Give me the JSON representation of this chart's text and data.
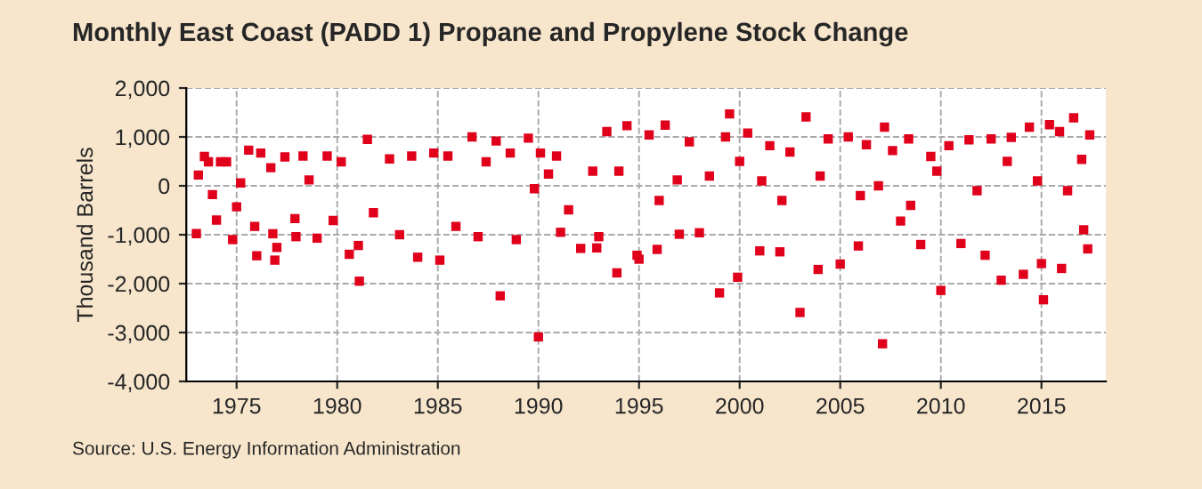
{
  "chart_data": {
    "type": "scatter",
    "title": "Monthly East Coast (PADD 1) Propane and Propylene Stock Change",
    "ylabel": "Thousand Barrels",
    "annotations": [
      "Source: U.S. Energy Information Administration"
    ],
    "xlim": [
      1972.5,
      2018.2
    ],
    "xticks": [
      1975,
      1980,
      1985,
      1990,
      1995,
      2000,
      2005,
      2010,
      2015
    ],
    "ylim": [
      -4000,
      2000
    ],
    "yticks": [
      {
        "value": -4000,
        "label": "-4,000"
      },
      {
        "value": -3000,
        "label": "-3,000"
      },
      {
        "value": -2000,
        "label": "-2,000"
      },
      {
        "value": -1000,
        "label": "-1,000"
      },
      {
        "value": 0,
        "label": "0"
      },
      {
        "value": 1000,
        "label": "1,000"
      },
      {
        "value": 2000,
        "label": "2,000"
      }
    ],
    "grid": true,
    "marker": "square",
    "series": [
      {
        "color": "#e0001b",
        "x": [
          1973.0,
          1973.1,
          1973.4,
          1973.6,
          1973.8,
          1974.0,
          1974.2,
          1974.5,
          1974.8,
          1975.0,
          1975.2,
          1975.6,
          1975.9,
          1976.0,
          1976.2,
          1976.7,
          1976.8,
          1976.9,
          1977.0,
          1977.4,
          1977.9,
          1977.95,
          1978.3,
          1978.6,
          1979.0,
          1979.5,
          1979.8,
          1980.2,
          1980.6,
          1981.05,
          1981.1,
          1981.5,
          1981.8,
          1982.6,
          1983.1,
          1983.7,
          1984.0,
          1984.8,
          1985.1,
          1985.5,
          1985.9,
          1986.7,
          1987.0,
          1987.4,
          1987.9,
          1988.1,
          1988.6,
          1988.9,
          1989.5,
          1989.8,
          1990.0,
          1990.1,
          1990.5,
          1990.9,
          1991.1,
          1991.5,
          1992.1,
          1992.7,
          1992.9,
          1993.0,
          1993.4,
          1993.9,
          1994.0,
          1994.4,
          1994.9,
          1995.0,
          1995.5,
          1995.9,
          1996.0,
          1996.3,
          1996.9,
          1997.0,
          1997.5,
          1998.0,
          1998.5,
          1999.0,
          1999.3,
          1999.5,
          1999.9,
          2000.0,
          2000.4,
          2001.0,
          2001.1,
          2001.5,
          2002.0,
          2002.1,
          2002.5,
          2003.0,
          2003.3,
          2003.9,
          2004.0,
          2004.4,
          2005.0,
          2005.4,
          2005.9,
          2006.0,
          2006.3,
          2006.9,
          2007.1,
          2007.2,
          2007.6,
          2008.0,
          2008.4,
          2008.5,
          2009.0,
          2009.5,
          2009.8,
          2010.0,
          2010.4,
          2011.0,
          2011.4,
          2011.8,
          2012.2,
          2012.5,
          2013.0,
          2013.3,
          2013.5,
          2014.1,
          2014.4,
          2014.8,
          2015.0,
          2015.1,
          2015.4,
          2015.9,
          2016.0,
          2016.3,
          2016.6,
          2017.0,
          2017.1,
          2017.3,
          2017.4
        ],
        "values": [
          -976,
          220,
          600,
          490,
          -180,
          -700,
          490,
          490,
          -1100,
          -430,
          60,
          730,
          -830,
          -1430,
          670,
          370,
          -980,
          -1520,
          -1260,
          590,
          -670,
          -1040,
          610,
          120,
          -1070,
          610,
          -710,
          490,
          -1400,
          -1220,
          -1950,
          950,
          -550,
          550,
          -1000,
          610,
          -1460,
          670,
          -1520,
          610,
          -830,
          1000,
          -1040,
          490,
          915,
          -2250,
          670,
          -1100,
          975,
          -60,
          -3090,
          670,
          240,
          610,
          -950,
          -490,
          -1280,
          300,
          -1270,
          -1040,
          1110,
          -1780,
          300,
          1230,
          -1420,
          -1500,
          1040,
          -1300,
          -300,
          1240,
          120,
          -990,
          900,
          -960,
          200,
          -2190,
          1000,
          1470,
          -1870,
          500,
          1080,
          -1330,
          100,
          820,
          -1350,
          -300,
          690,
          -2590,
          1410,
          -1710,
          200,
          960,
          -1600,
          1000,
          -1230,
          -200,
          840,
          0,
          -3230,
          1200,
          720,
          -720,
          960,
          -400,
          -1200,
          600,
          300,
          -2140,
          820,
          -1180,
          940,
          -100,
          -1420,
          960,
          -1930,
          500,
          990,
          -1810,
          1200,
          100,
          -1590,
          -2330,
          1250,
          1110,
          -1690,
          -100,
          1390,
          540,
          -900,
          -1290,
          1040
        ]
      }
    ]
  }
}
